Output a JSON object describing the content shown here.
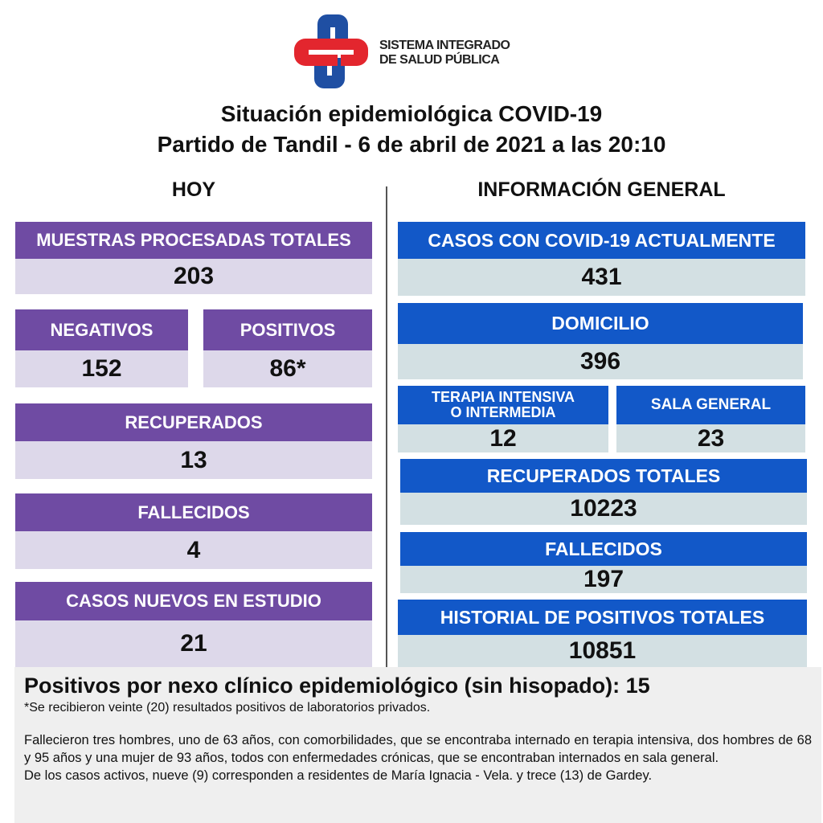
{
  "logo": {
    "text_line1": "SISTEMA INTEGRADO",
    "text_line2": "DE SALUD PÚBLICA",
    "colors": {
      "red": "#e3262e",
      "blue": "#1f4fa3"
    }
  },
  "title": {
    "line1": "Situación epidemiológica COVID-19",
    "line2": "Partido de Tandil - 6 de abril de 2021 a las 20:10"
  },
  "colors": {
    "purple": "#6f4ba3",
    "lavender": "#ddd8ea",
    "blue": "#1258c8",
    "light_blue_gray": "#d3e0e3"
  },
  "hoy": {
    "heading": "HOY",
    "muestras": {
      "label": "MUESTRAS PROCESADAS TOTALES",
      "value": "203"
    },
    "negativos": {
      "label": "NEGATIVOS",
      "value": "152"
    },
    "positivos": {
      "label": "POSITIVOS",
      "value": "86*"
    },
    "recuperados": {
      "label": "RECUPERADOS",
      "value": "13"
    },
    "fallecidos": {
      "label": "FALLECIDOS",
      "value": "4"
    },
    "casos_nuevos": {
      "label": "CASOS NUEVOS EN ESTUDIO",
      "value": "21"
    }
  },
  "general": {
    "heading": "INFORMACIÓN GENERAL",
    "casos_actuales": {
      "label": "CASOS CON COVID-19 ACTUALMENTE",
      "value": "431"
    },
    "domicilio": {
      "label": "DOMICILIO",
      "value": "396"
    },
    "terapia": {
      "label_line1": "TERAPIA INTENSIVA",
      "label_line2": "O INTERMEDIA",
      "value": "12"
    },
    "sala": {
      "label": "SALA GENERAL",
      "value": "23"
    },
    "recuperados": {
      "label": "RECUPERADOS TOTALES",
      "value": "10223"
    },
    "fallecidos": {
      "label": "FALLECIDOS",
      "value": "197"
    },
    "historial": {
      "label": "HISTORIAL DE POSITIVOS TOTALES",
      "value": "10851"
    }
  },
  "notes": {
    "nexo": "Positivos por nexo clínico epidemiológico (sin hisopado): 15",
    "footnote": "*Se recibieron veinte (20) resultados positivos de laboratorios privados.",
    "fallecidos": "Fallecieron tres hombres, uno de 63 años, con comorbilidades, que se encontraba internado en terapia intensiva, dos hombres de 68 y 95 años y una mujer de 93 años, todos con enfermedades crónicas, que se encontraban internados en sala general.",
    "activos": "De los casos activos, nueve (9) corresponden a residentes de María Ignacia - Vela. y trece (13) de Gardey."
  }
}
